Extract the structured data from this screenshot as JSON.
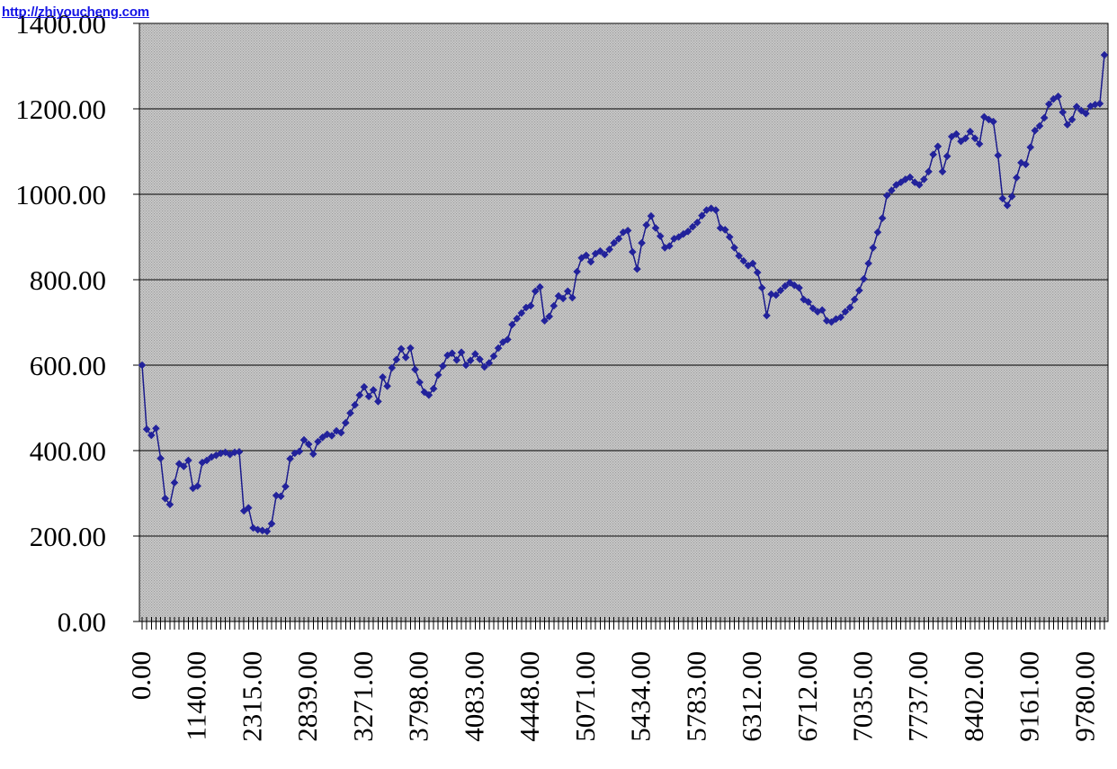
{
  "watermark": {
    "text": "http://zhiyoucheng.com"
  },
  "colors": {
    "page_bg": "#ffffff",
    "watermark_blue": "#1414e6",
    "plot_bg_base": "#cbcbcb",
    "plot_bg_dot": "#9c9c9c",
    "gridline": "#000000",
    "axis_text": "#000000",
    "series_line": "#19198c",
    "series_marker": "#22229b"
  },
  "chart_data": {
    "type": "line",
    "marker": "diamond",
    "title": "",
    "xlabel": "",
    "ylabel": "",
    "legend": "none",
    "grid": "horizontal",
    "ylim": [
      0,
      1400
    ],
    "y_tick_interval": 200,
    "y_tick_labels": [
      "0.00",
      "200.00",
      "400.00",
      "600.00",
      "800.00",
      "1000.00",
      "1200.00",
      "1400.00"
    ],
    "x_tick_labels": [
      "0.00",
      "1140.00",
      "2315.00",
      "2839.00",
      "3271.00",
      "3798.00",
      "4083.00",
      "4448.00",
      "5071.00",
      "5434.00",
      "5783.00",
      "6312.00",
      "6712.00",
      "7035.00",
      "7737.00",
      "8402.00",
      "9161.00",
      "9780.00"
    ],
    "x_label_every_n_points": 12,
    "values": [
      600,
      450,
      436,
      452,
      382,
      288,
      274,
      325,
      369,
      363,
      377,
      312,
      317,
      372,
      377,
      385,
      389,
      394,
      396,
      391,
      396,
      397,
      259,
      266,
      219,
      215,
      213,
      211,
      229,
      295,
      293,
      316,
      381,
      394,
      398,
      425,
      415,
      392,
      421,
      431,
      438,
      435,
      446,
      442,
      465,
      488,
      507,
      530,
      549,
      527,
      542,
      515,
      572,
      551,
      594,
      613,
      638,
      618,
      640,
      590,
      560,
      537,
      530,
      545,
      577,
      598,
      623,
      628,
      612,
      630,
      600,
      611,
      626,
      614,
      596,
      605,
      621,
      640,
      654,
      660,
      695,
      709,
      722,
      735,
      739,
      773,
      783,
      704,
      714,
      739,
      762,
      756,
      773,
      758,
      819,
      851,
      857,
      842,
      861,
      867,
      859,
      871,
      886,
      896,
      911,
      915,
      865,
      825,
      886,
      928,
      949,
      921,
      902,
      875,
      879,
      896,
      900,
      907,
      913,
      924,
      934,
      950,
      963,
      967,
      963,
      921,
      917,
      900,
      875,
      856,
      844,
      833,
      838,
      817,
      781,
      716,
      766,
      764,
      775,
      785,
      793,
      787,
      781,
      754,
      748,
      733,
      725,
      729,
      704,
      701,
      708,
      712,
      725,
      735,
      754,
      775,
      802,
      838,
      875,
      911,
      944,
      997,
      1009,
      1022,
      1028,
      1035,
      1040,
      1028,
      1022,
      1035,
      1053,
      1093,
      1112,
      1053,
      1089,
      1135,
      1141,
      1124,
      1131,
      1147,
      1131,
      1118,
      1181,
      1175,
      1170,
      1091,
      990,
      974,
      995,
      1039,
      1074,
      1070,
      1110,
      1149,
      1160,
      1179,
      1211,
      1223,
      1229,
      1192,
      1163,
      1175,
      1205,
      1196,
      1189,
      1206,
      1210,
      1212,
      1326
    ]
  }
}
